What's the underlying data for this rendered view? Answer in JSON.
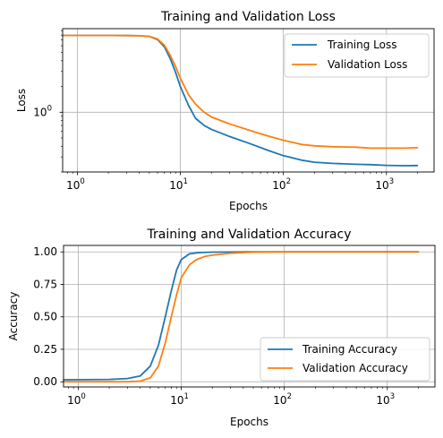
{
  "chart_data": [
    {
      "type": "line",
      "title": "Training and Validation Loss",
      "xlabel": "Epochs",
      "ylabel": "Loss",
      "xscale": "log",
      "yscale": "log",
      "xlim": [
        0.72,
        2900
      ],
      "ylim": [
        0.2,
        9.5
      ],
      "grid": true,
      "legend": "top-right",
      "x_ticks": [
        {
          "base": "10",
          "exp": "0"
        },
        {
          "base": "10",
          "exp": "1"
        },
        {
          "base": "10",
          "exp": "2"
        },
        {
          "base": "10",
          "exp": "3"
        }
      ],
      "y_ticks": [
        {
          "base": "10",
          "exp": "0"
        }
      ],
      "series": [
        {
          "name": "Training Loss",
          "color": "#1f77b4",
          "points": [
            [
              0.72,
              7.9
            ],
            [
              1,
              7.9
            ],
            [
              2,
              7.9
            ],
            [
              3,
              7.88
            ],
            [
              4,
              7.85
            ],
            [
              5,
              7.7
            ],
            [
              6,
              7.1
            ],
            [
              7,
              5.8
            ],
            [
              8,
              4.2
            ],
            [
              9,
              2.9
            ],
            [
              10,
              2.0
            ],
            [
              12,
              1.2
            ],
            [
              14,
              0.85
            ],
            [
              17,
              0.7
            ],
            [
              20,
              0.63
            ],
            [
              30,
              0.52
            ],
            [
              50,
              0.42
            ],
            [
              70,
              0.36
            ],
            [
              100,
              0.31
            ],
            [
              150,
              0.275
            ],
            [
              200,
              0.26
            ],
            [
              300,
              0.252
            ],
            [
              500,
              0.246
            ],
            [
              700,
              0.244
            ],
            [
              1000,
              0.239
            ],
            [
              1500,
              0.237
            ],
            [
              2000,
              0.238
            ]
          ]
        },
        {
          "name": "Validation Loss",
          "color": "#ff7f0e",
          "points": [
            [
              0.72,
              7.9
            ],
            [
              1,
              7.9
            ],
            [
              2,
              7.9
            ],
            [
              3,
              7.88
            ],
            [
              4,
              7.85
            ],
            [
              5,
              7.72
            ],
            [
              6,
              7.2
            ],
            [
              7,
              6.1
            ],
            [
              8,
              4.6
            ],
            [
              9,
              3.4
            ],
            [
              10,
              2.5
            ],
            [
              12,
              1.6
            ],
            [
              14,
              1.25
            ],
            [
              17,
              1.0
            ],
            [
              20,
              0.88
            ],
            [
              30,
              0.73
            ],
            [
              50,
              0.6
            ],
            [
              70,
              0.53
            ],
            [
              100,
              0.47
            ],
            [
              150,
              0.42
            ],
            [
              200,
              0.405
            ],
            [
              300,
              0.395
            ],
            [
              500,
              0.39
            ],
            [
              700,
              0.38
            ],
            [
              1000,
              0.38
            ],
            [
              1500,
              0.38
            ],
            [
              2000,
              0.385
            ]
          ]
        }
      ]
    },
    {
      "type": "line",
      "title": "Training and Validation Accuracy",
      "xlabel": "Epochs",
      "ylabel": "Accuracy",
      "xscale": "log",
      "yscale": "linear",
      "xlim": [
        0.72,
        2900
      ],
      "ylim": [
        -0.04,
        1.05
      ],
      "grid": true,
      "legend": "lower-right",
      "x_ticks": [
        {
          "base": "10",
          "exp": "0"
        },
        {
          "base": "10",
          "exp": "1"
        },
        {
          "base": "10",
          "exp": "2"
        },
        {
          "base": "10",
          "exp": "3"
        }
      ],
      "y_ticks": [
        {
          "value": 0,
          "label": "0.00"
        },
        {
          "value": 0.25,
          "label": "0.25"
        },
        {
          "value": 0.5,
          "label": "0.50"
        },
        {
          "value": 0.75,
          "label": "0.75"
        },
        {
          "value": 1,
          "label": "1.00"
        }
      ],
      "series": [
        {
          "name": "Training Accuracy",
          "color": "#1f77b4",
          "points": [
            [
              0.72,
              0.015
            ],
            [
              1,
              0.016
            ],
            [
              2,
              0.018
            ],
            [
              3,
              0.025
            ],
            [
              4,
              0.045
            ],
            [
              5,
              0.12
            ],
            [
              6,
              0.28
            ],
            [
              7,
              0.5
            ],
            [
              8,
              0.7
            ],
            [
              9,
              0.86
            ],
            [
              10,
              0.94
            ],
            [
              12,
              0.985
            ],
            [
              15,
              0.995
            ],
            [
              20,
              0.998
            ],
            [
              50,
              1.0
            ],
            [
              100,
              1.0
            ],
            [
              1000,
              1.0
            ],
            [
              2000,
              1.0
            ]
          ]
        },
        {
          "name": "Validation Accuracy",
          "color": "#ff7f0e",
          "points": [
            [
              0.72,
              0.0
            ],
            [
              1,
              0.0
            ],
            [
              2,
              0.0
            ],
            [
              3,
              0.0
            ],
            [
              4,
              0.005
            ],
            [
              5,
              0.03
            ],
            [
              6,
              0.12
            ],
            [
              7,
              0.3
            ],
            [
              8,
              0.5
            ],
            [
              9,
              0.67
            ],
            [
              10,
              0.8
            ],
            [
              12,
              0.9
            ],
            [
              14,
              0.94
            ],
            [
              17,
              0.965
            ],
            [
              20,
              0.975
            ],
            [
              30,
              0.99
            ],
            [
              50,
              0.998
            ],
            [
              100,
              1.0
            ],
            [
              1000,
              1.0
            ],
            [
              2000,
              1.0
            ]
          ]
        }
      ]
    }
  ]
}
